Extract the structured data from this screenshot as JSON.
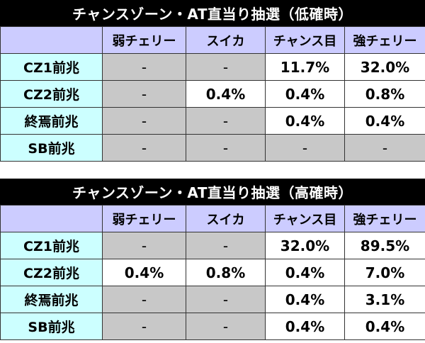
{
  "tables": [
    {
      "title": "チャンスゾーン・AT直当り抽選（低確時）",
      "columns": [
        "弱チェリー",
        "スイカ",
        "チャンス目",
        "強チェリー"
      ],
      "rows": [
        {
          "label": "CZ1前兆",
          "cells": [
            "-",
            "-",
            "11.7%",
            "32.0%"
          ],
          "shaded": [
            true,
            true,
            false,
            false
          ]
        },
        {
          "label": "CZ2前兆",
          "cells": [
            "-",
            "0.4%",
            "0.4%",
            "0.8%"
          ],
          "shaded": [
            true,
            false,
            false,
            false
          ]
        },
        {
          "label": "終焉前兆",
          "cells": [
            "-",
            "-",
            "0.4%",
            "0.4%"
          ],
          "shaded": [
            true,
            true,
            false,
            false
          ]
        },
        {
          "label": "SB前兆",
          "cells": [
            "-",
            "-",
            "-",
            "-"
          ],
          "shaded": [
            true,
            true,
            true,
            true
          ]
        }
      ]
    },
    {
      "title": "チャンスゾーン・AT直当り抽選（高確時）",
      "columns": [
        "弱チェリー",
        "スイカ",
        "チャンス目",
        "強チェリー"
      ],
      "rows": [
        {
          "label": "CZ1前兆",
          "cells": [
            "-",
            "-",
            "32.0%",
            "89.5%"
          ],
          "shaded": [
            true,
            true,
            false,
            false
          ]
        },
        {
          "label": "CZ2前兆",
          "cells": [
            "0.4%",
            "0.8%",
            "0.4%",
            "7.0%"
          ],
          "shaded": [
            false,
            false,
            false,
            false
          ]
        },
        {
          "label": "終焉前兆",
          "cells": [
            "-",
            "-",
            "0.4%",
            "3.1%"
          ],
          "shaded": [
            true,
            true,
            false,
            false
          ]
        },
        {
          "label": "SB前兆",
          "cells": [
            "-",
            "-",
            "0.4%",
            "0.4%"
          ],
          "shaded": [
            true,
            true,
            false,
            false
          ]
        }
      ]
    }
  ],
  "colors": {
    "title_bg": "#000000",
    "column_header_bg": "#ccccff",
    "row_header_bg": "#ccffff",
    "shaded_cell_bg": "#c8c8c8"
  }
}
